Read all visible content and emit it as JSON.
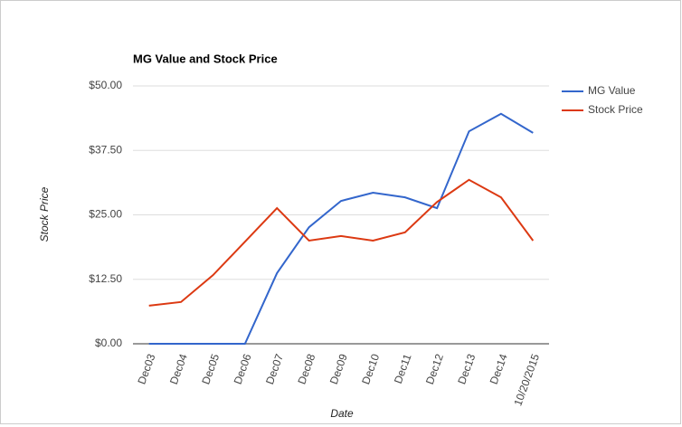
{
  "chart_data": {
    "type": "line",
    "title": "MG Value and Stock Price",
    "x_label": "Date",
    "y_label": "Stock Price",
    "categories": [
      "Dec03",
      "Dec04",
      "Dec05",
      "Dec06",
      "Dec07",
      "Dec08",
      "Dec09",
      "Dec10",
      "Dec11",
      "Dec12",
      "Dec13",
      "Dec14",
      "10/20/2015"
    ],
    "series": [
      {
        "name": "MG Value",
        "color": "#3366cc",
        "values": [
          0,
          0,
          0,
          0,
          13.7,
          22.6,
          27.7,
          29.3,
          28.4,
          26.3,
          41.2,
          44.6,
          40.9
        ]
      },
      {
        "name": "Stock Price",
        "color": "#dc3912",
        "values": [
          7.4,
          8.1,
          13.3,
          19.8,
          26.3,
          20.0,
          20.9,
          20.0,
          21.6,
          27.5,
          31.8,
          28.4,
          20.0
        ]
      }
    ],
    "ylim": [
      0,
      50
    ],
    "yticks": [
      {
        "value": 0,
        "label": "$0.00"
      },
      {
        "value": 12.5,
        "label": "$12.50"
      },
      {
        "value": 25,
        "label": "$25.00"
      },
      {
        "value": 37.5,
        "label": "$37.50"
      },
      {
        "value": 50,
        "label": "$50.00"
      }
    ],
    "grid": true,
    "legend": "right"
  }
}
